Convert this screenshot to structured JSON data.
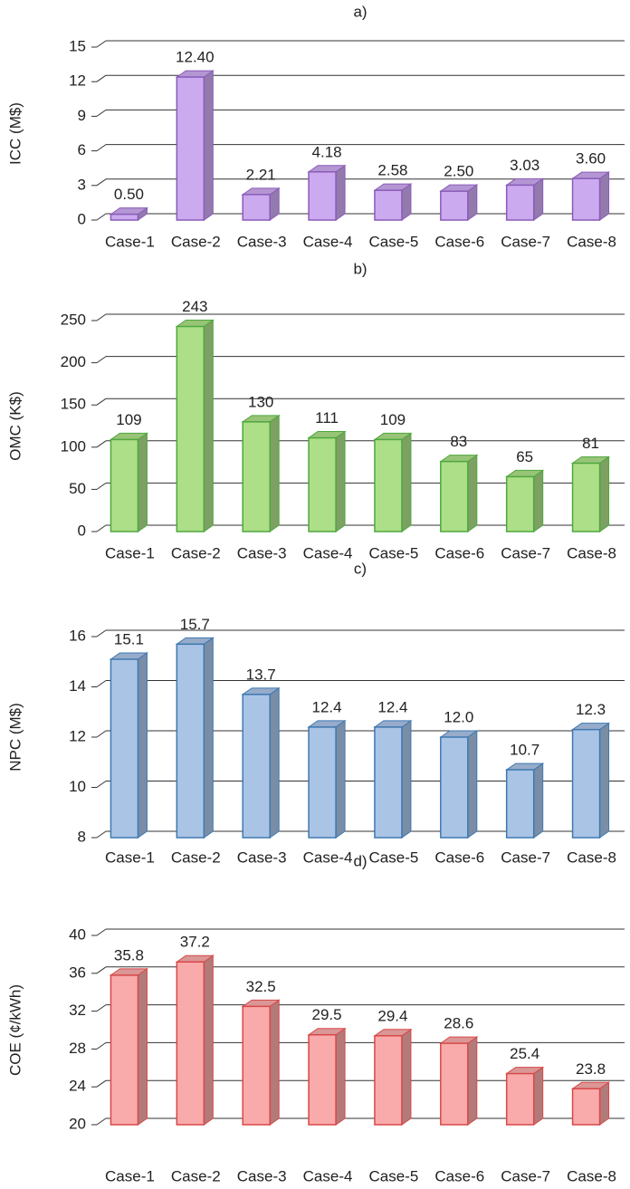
{
  "chart_data": [
    {
      "type": "bar3d",
      "title": "a)",
      "y_label": "ICC (M$)",
      "categories": [
        "Case-1",
        "Case-2",
        "Case-3",
        "Case-4",
        "Case-5",
        "Case-6",
        "Case-7",
        "Case-8"
      ],
      "values": [
        0.5,
        12.4,
        2.21,
        4.18,
        2.58,
        2.5,
        3.03,
        3.6
      ],
      "value_labels": [
        "0.50",
        "12.40",
        "2.21",
        "4.18",
        "2.58",
        "2.50",
        "3.03",
        "3.60"
      ],
      "color": "#ccaaf0",
      "edge_color": "#8a5bb8",
      "ylim": [
        0,
        15
      ],
      "yticks": [
        0,
        3,
        6,
        9,
        12,
        15
      ],
      "grid": true
    },
    {
      "type": "bar3d",
      "title": "b)",
      "y_label": "OMC (K$)",
      "categories": [
        "Case-1",
        "Case-2",
        "Case-3",
        "Case-4",
        "Case-5",
        "Case-6",
        "Case-7",
        "Case-8"
      ],
      "values": [
        109,
        243,
        130,
        111,
        109,
        83,
        65,
        81
      ],
      "color": "#addf88",
      "edge_color": "#4ea83e",
      "ylim": [
        0,
        250
      ],
      "yticks": [
        0,
        50,
        100,
        150,
        200,
        250
      ],
      "grid": true
    },
    {
      "type": "bar3d",
      "title": "c)",
      "y_label": "NPC (M$)",
      "categories": [
        "Case-1",
        "Case-2",
        "Case-3",
        "Case-4",
        "Case-5",
        "Case-6",
        "Case-7",
        "Case-8"
      ],
      "values": [
        15.1,
        15.7,
        13.7,
        12.4,
        12.4,
        12.0,
        10.7,
        12.3
      ],
      "value_labels": [
        "15.1",
        "15.7",
        "13.7",
        "12.4",
        "12.4",
        "12.0",
        "10.7",
        "12.3"
      ],
      "color": "#aac4e6",
      "edge_color": "#3f78b0",
      "ylim": [
        8,
        16
      ],
      "yticks": [
        8,
        10,
        12,
        14,
        16
      ],
      "grid": true
    },
    {
      "type": "bar3d",
      "title": "d)",
      "y_label": "COE (¢/kWh)",
      "categories": [
        "Case-1",
        "Case-2",
        "Case-3",
        "Case-4",
        "Case-5",
        "Case-6",
        "Case-7",
        "Case-8"
      ],
      "values": [
        35.8,
        37.2,
        32.5,
        29.5,
        29.4,
        28.6,
        25.4,
        23.8
      ],
      "color": "#f9aaaa",
      "edge_color": "#d84848",
      "ylim": [
        20,
        40
      ],
      "yticks": [
        20,
        24,
        28,
        32,
        36,
        40
      ],
      "grid": true
    }
  ]
}
